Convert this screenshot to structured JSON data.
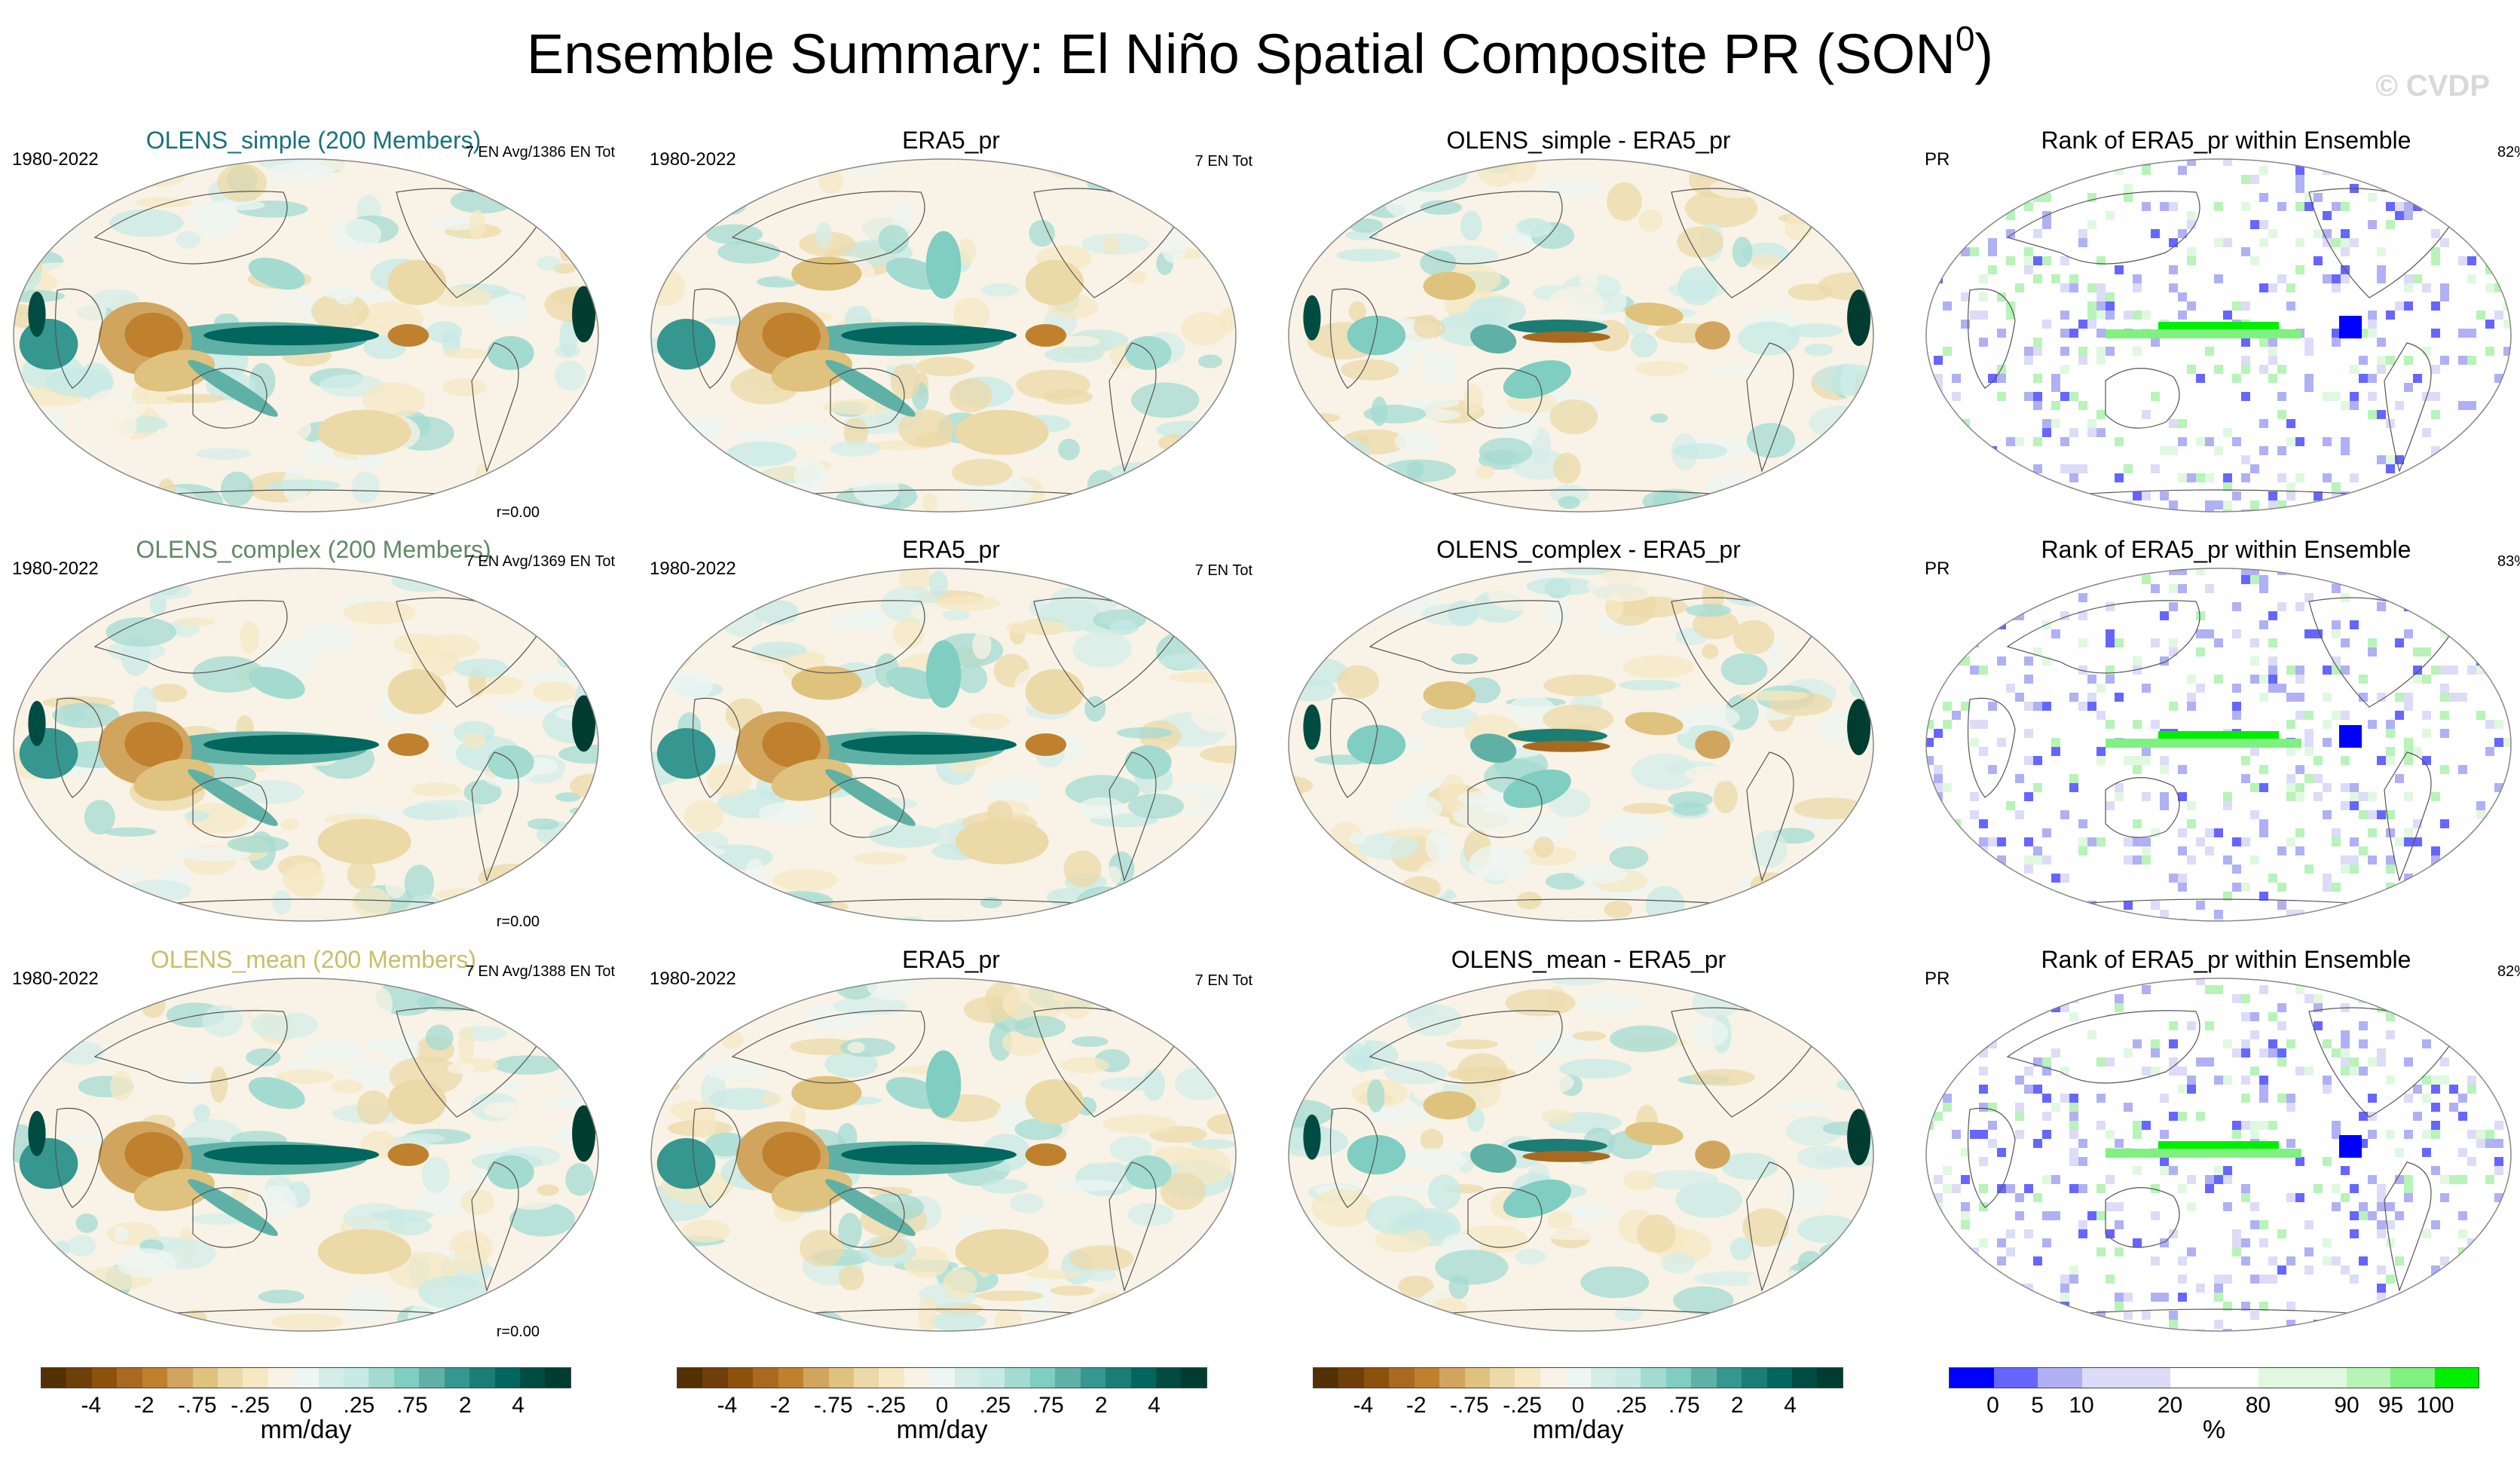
{
  "figure": {
    "title_main": "Ensemble Summary: El Niño Spatial Composite PR (SON",
    "title_sup": "0",
    "title_close": ")",
    "watermark": "© CVDP"
  },
  "chart_data": [
    {
      "type": "heatmap",
      "row": 0,
      "col": 0,
      "title": "OLENS_simple (200 Members)",
      "title_color": "#1a7080",
      "left_label": "1980-2022",
      "right_label": "7 EN Avg/1386 EN Tot",
      "r_label": "r=0.00"
    },
    {
      "type": "heatmap",
      "row": 0,
      "col": 1,
      "title": "ERA5_pr",
      "title_color": "#000000",
      "left_label": "1980-2022",
      "right_label": "7 EN Tot"
    },
    {
      "type": "heatmap",
      "row": 0,
      "col": 2,
      "title": "OLENS_simple - ERA5_pr",
      "title_color": "#000000"
    },
    {
      "type": "heatmap",
      "row": 0,
      "col": 3,
      "title": "Rank of ERA5_pr within Ensemble",
      "title_color": "#000000",
      "left_label": "PR",
      "right_label": "82%"
    },
    {
      "type": "heatmap",
      "row": 1,
      "col": 0,
      "title": "OLENS_complex (200 Members)",
      "title_color": "#5f8a62",
      "left_label": "1980-2022",
      "right_label": "7 EN Avg/1369 EN Tot",
      "r_label": "r=0.00"
    },
    {
      "type": "heatmap",
      "row": 1,
      "col": 1,
      "title": "ERA5_pr",
      "title_color": "#000000",
      "left_label": "1980-2022",
      "right_label": "7 EN Tot"
    },
    {
      "type": "heatmap",
      "row": 1,
      "col": 2,
      "title": "OLENS_complex - ERA5_pr",
      "title_color": "#000000"
    },
    {
      "type": "heatmap",
      "row": 1,
      "col": 3,
      "title": "Rank of ERA5_pr within Ensemble",
      "title_color": "#000000",
      "left_label": "PR",
      "right_label": "83%"
    },
    {
      "type": "heatmap",
      "row": 2,
      "col": 0,
      "title": "OLENS_mean (200 Members)",
      "title_color": "#c9bd6a",
      "left_label": "1980-2022",
      "right_label": "7 EN Avg/1388 EN Tot",
      "r_label": "r=0.00"
    },
    {
      "type": "heatmap",
      "row": 2,
      "col": 1,
      "title": "ERA5_pr",
      "title_color": "#000000",
      "left_label": "1980-2022",
      "right_label": "7 EN Tot"
    },
    {
      "type": "heatmap",
      "row": 2,
      "col": 2,
      "title": "OLENS_mean - ERA5_pr",
      "title_color": "#000000"
    },
    {
      "type": "heatmap",
      "row": 2,
      "col": 3,
      "title": "Rank of ERA5_pr within Ensemble",
      "title_color": "#000000",
      "left_label": "PR",
      "right_label": "82%"
    }
  ],
  "colorbars": {
    "precip": {
      "colors": [
        "#543005",
        "#6f3f0a",
        "#8c510a",
        "#a86a21",
        "#bf812d",
        "#d2a55e",
        "#dfc27d",
        "#ecd9a8",
        "#f6e8c3",
        "#f8f3e6",
        "#eef6f3",
        "#d4ede8",
        "#c7eae5",
        "#a4dbd1",
        "#80cdc1",
        "#5fb1a6",
        "#35978f",
        "#1b7d74",
        "#01665e",
        "#004c42",
        "#003c30"
      ],
      "ticks": [
        "-4",
        "-2",
        "-.75",
        "-.25",
        "0",
        ".25",
        ".75",
        "2",
        "4"
      ],
      "units": "mm/day"
    },
    "rank": {
      "colors": [
        "#0000ff",
        "#6666ff",
        "#b0b0f5",
        "#dcdcf8",
        "#dcdcf8",
        "#ffffff",
        "#ffffff",
        "#e0f8e0",
        "#e0f8e0",
        "#b8f3b8",
        "#80f080",
        "#00ee00"
      ],
      "ticks": [
        "0",
        "5",
        "10",
        "20",
        "80",
        "90",
        "95",
        "100"
      ],
      "units": "%"
    }
  }
}
